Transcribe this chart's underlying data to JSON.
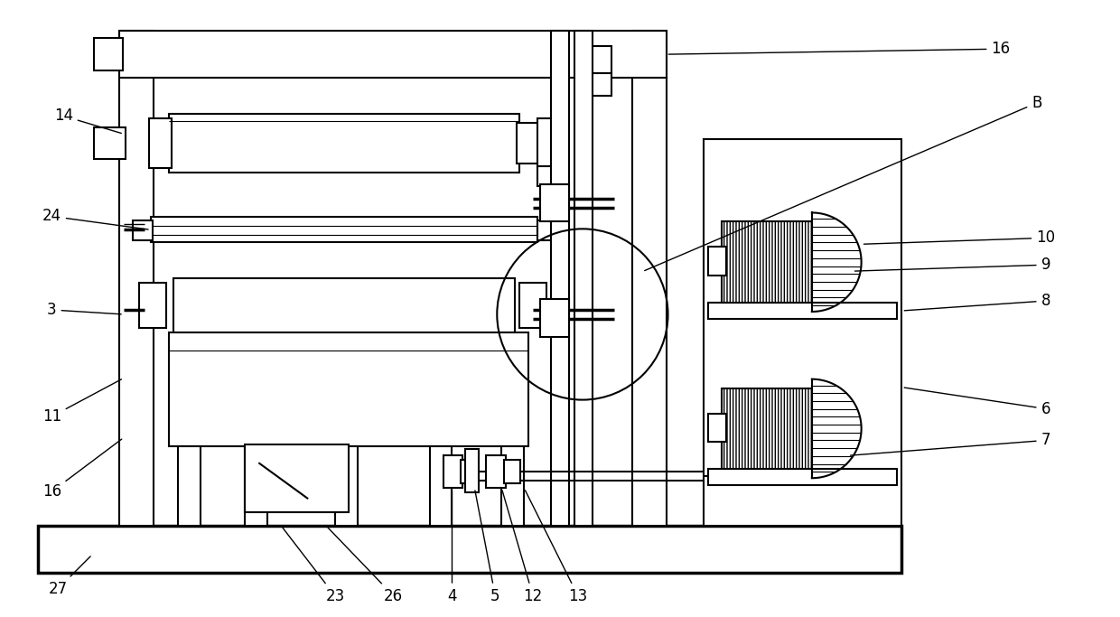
{
  "fig_width": 12.4,
  "fig_height": 6.83,
  "dpi": 100,
  "bg_color": "#ffffff",
  "lc": "#000000",
  "lw": 1.5,
  "tlw": 2.5,
  "fs": 12
}
